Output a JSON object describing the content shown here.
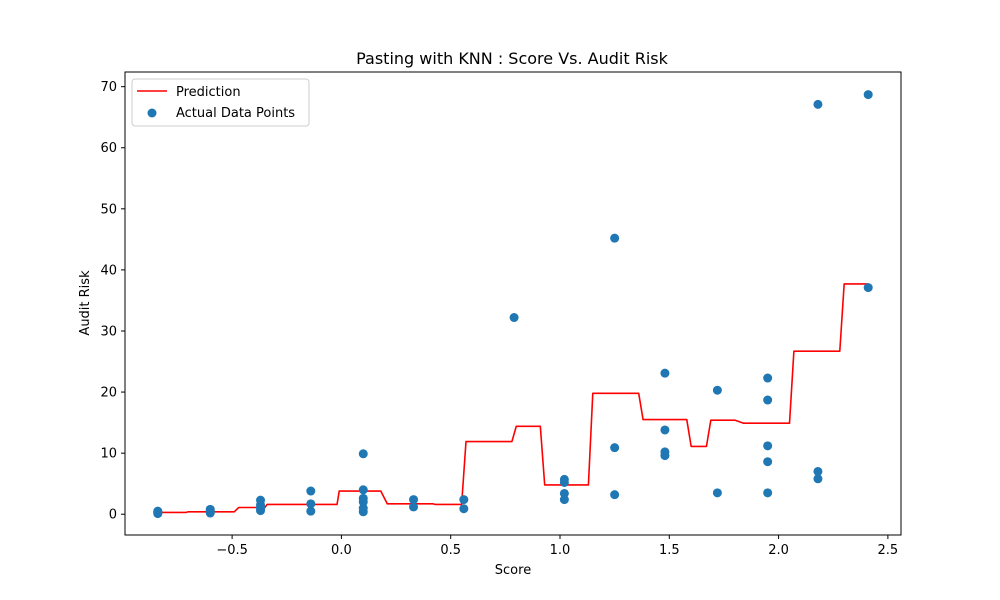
{
  "chart_data": {
    "type": "scatter",
    "title": "Pasting with KNN : Score Vs. Audit Risk",
    "xlabel": "Score",
    "ylabel": "Audit Risk",
    "xlim": [
      -0.99,
      2.56
    ],
    "ylim": [
      -3.4,
      72.4
    ],
    "xticks": [
      -0.5,
      0.0,
      0.5,
      1.0,
      1.5,
      2.0,
      2.5
    ],
    "xtick_labels": [
      "−0.5",
      "0.0",
      "0.5",
      "1.0",
      "1.5",
      "2.0",
      "2.5"
    ],
    "yticks": [
      0,
      10,
      20,
      30,
      40,
      50,
      60,
      70
    ],
    "ytick_labels": [
      "0",
      "10",
      "20",
      "30",
      "40",
      "50",
      "60",
      "70"
    ],
    "grid": false,
    "legend_position": "top-left",
    "series": [
      {
        "name": "Prediction",
        "kind": "line",
        "color": "#ff0000",
        "points": [
          [
            -0.84,
            0.3
          ],
          [
            -0.71,
            0.3
          ],
          [
            -0.7,
            0.4
          ],
          [
            -0.49,
            0.4
          ],
          [
            -0.47,
            1.1
          ],
          [
            -0.35,
            1.1
          ],
          [
            -0.34,
            1.6
          ],
          [
            -0.02,
            1.6
          ],
          [
            -0.01,
            3.8
          ],
          [
            0.18,
            3.8
          ],
          [
            0.21,
            1.7
          ],
          [
            0.42,
            1.7
          ],
          [
            0.43,
            1.6
          ],
          [
            0.55,
            1.6
          ],
          [
            0.57,
            11.9
          ],
          [
            0.78,
            11.9
          ],
          [
            0.8,
            14.4
          ],
          [
            0.91,
            14.4
          ],
          [
            0.93,
            4.8
          ],
          [
            1.13,
            4.8
          ],
          [
            1.15,
            19.8
          ],
          [
            1.36,
            19.8
          ],
          [
            1.38,
            15.5
          ],
          [
            1.58,
            15.5
          ],
          [
            1.6,
            11.1
          ],
          [
            1.67,
            11.1
          ],
          [
            1.69,
            15.4
          ],
          [
            1.8,
            15.4
          ],
          [
            1.84,
            14.9
          ],
          [
            2.05,
            14.9
          ],
          [
            2.07,
            26.7
          ],
          [
            2.28,
            26.7
          ],
          [
            2.3,
            37.7
          ],
          [
            2.41,
            37.7
          ]
        ]
      },
      {
        "name": "Actual Data Points",
        "kind": "scatter",
        "color": "#1f77b4",
        "points": [
          [
            -0.84,
            0.1
          ],
          [
            -0.84,
            0.2
          ],
          [
            -0.84,
            0.3
          ],
          [
            -0.84,
            0.4
          ],
          [
            -0.84,
            0.5
          ],
          [
            -0.6,
            0.2
          ],
          [
            -0.6,
            0.4
          ],
          [
            -0.6,
            0.6
          ],
          [
            -0.6,
            0.8
          ],
          [
            -0.37,
            0.6
          ],
          [
            -0.37,
            1.0
          ],
          [
            -0.37,
            1.5
          ],
          [
            -0.37,
            2.3
          ],
          [
            -0.14,
            0.5
          ],
          [
            -0.14,
            1.7
          ],
          [
            -0.14,
            3.8
          ],
          [
            0.1,
            0.4
          ],
          [
            0.1,
            1.0
          ],
          [
            0.1,
            2.0
          ],
          [
            0.1,
            2.6
          ],
          [
            0.1,
            4.0
          ],
          [
            0.1,
            9.9
          ],
          [
            0.33,
            1.2
          ],
          [
            0.33,
            2.4
          ],
          [
            0.56,
            0.9
          ],
          [
            0.56,
            2.4
          ],
          [
            0.79,
            32.2
          ],
          [
            1.02,
            2.4
          ],
          [
            1.02,
            3.4
          ],
          [
            1.02,
            5.2
          ],
          [
            1.02,
            5.7
          ],
          [
            1.25,
            3.2
          ],
          [
            1.25,
            10.9
          ],
          [
            1.25,
            45.2
          ],
          [
            1.48,
            9.6
          ],
          [
            1.48,
            10.2
          ],
          [
            1.48,
            13.8
          ],
          [
            1.48,
            23.1
          ],
          [
            1.72,
            3.5
          ],
          [
            1.72,
            20.3
          ],
          [
            1.95,
            3.5
          ],
          [
            1.95,
            8.6
          ],
          [
            1.95,
            11.2
          ],
          [
            1.95,
            18.7
          ],
          [
            1.95,
            22.3
          ],
          [
            2.18,
            5.8
          ],
          [
            2.18,
            7.0
          ],
          [
            2.18,
            67.1
          ],
          [
            2.41,
            37.1
          ],
          [
            2.41,
            68.7
          ]
        ]
      }
    ]
  }
}
